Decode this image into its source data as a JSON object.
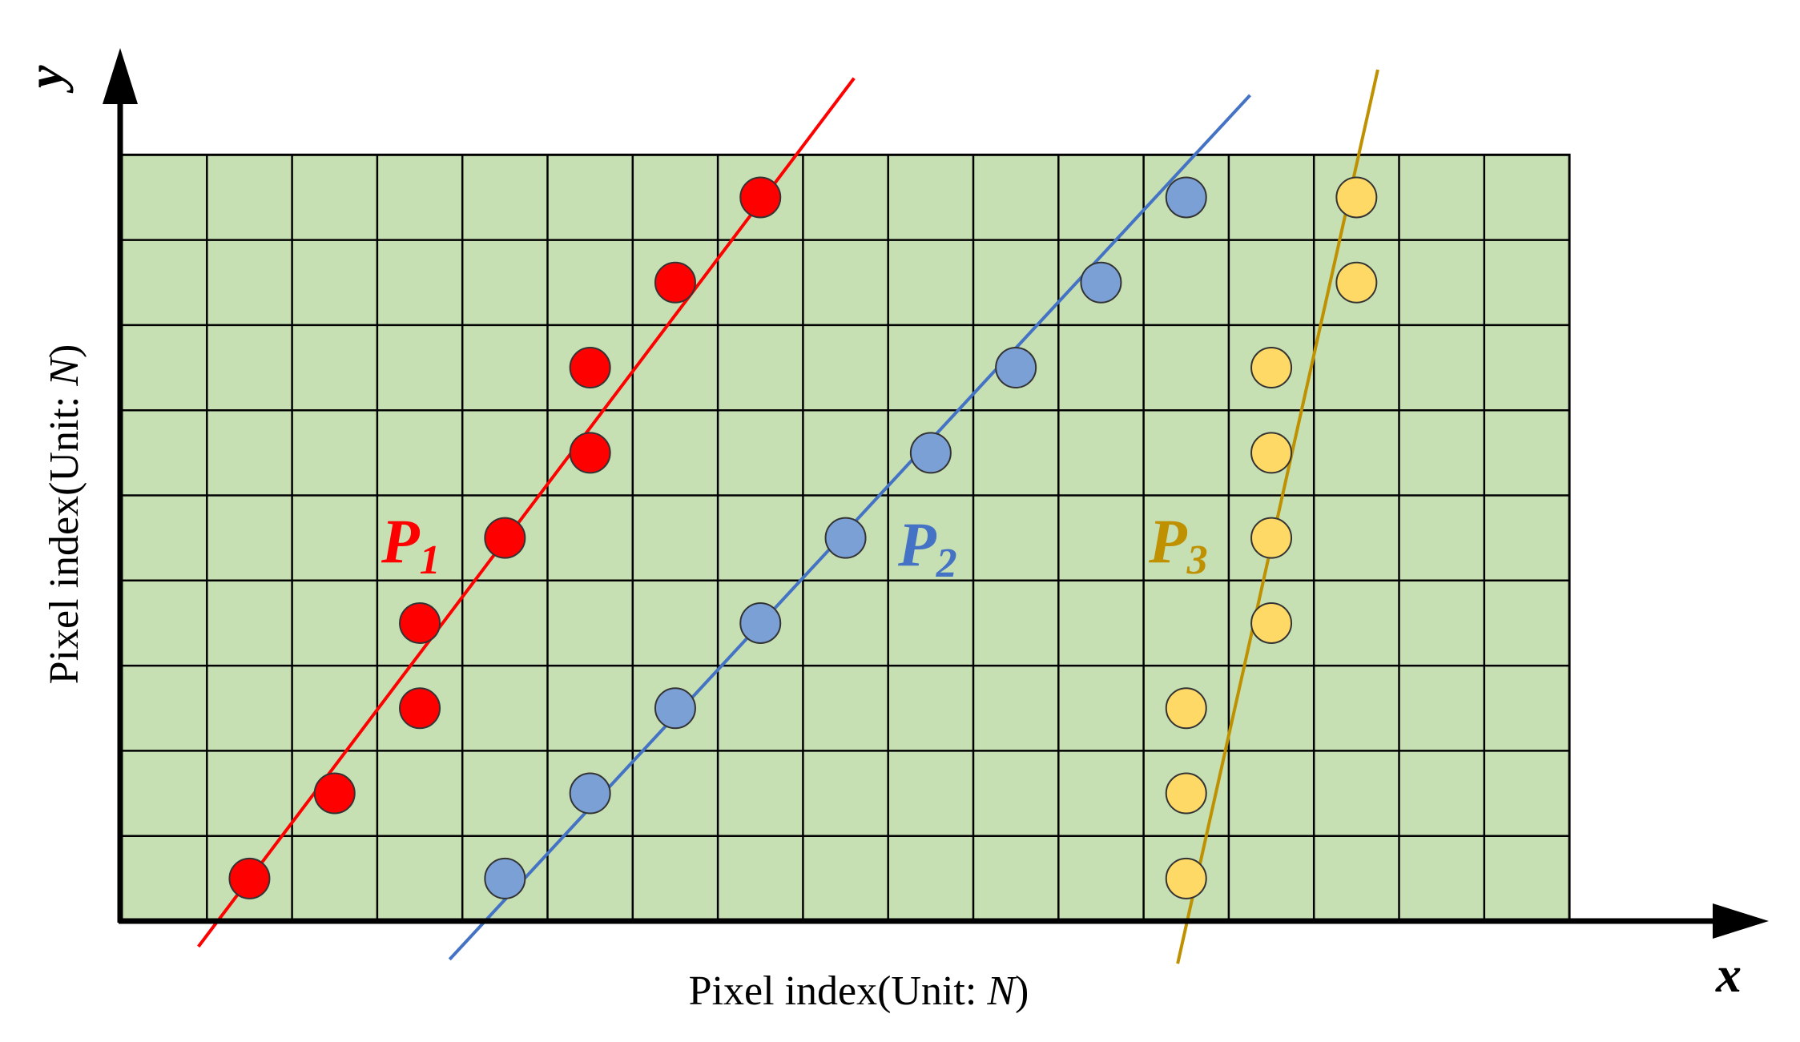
{
  "axes": {
    "x_letter": "x",
    "y_letter": "y",
    "x_label": {
      "prefix": "Pixel index(Unit: ",
      "unit": "N",
      "suffix": ")"
    },
    "y_label": {
      "prefix": "Pixel index(Unit: ",
      "unit": "N",
      "suffix": ")"
    }
  },
  "grid": {
    "columns": 17,
    "rows": 9,
    "fill": "#c6e0b4",
    "line_color": "#000000"
  },
  "series": [
    {
      "name": "P",
      "subscript": "1",
      "color": "#ff0000",
      "line_color": "#ff0000",
      "points": [
        [
          1.5,
          0.5
        ],
        [
          2.5,
          1.5
        ],
        [
          3.5,
          2.5
        ],
        [
          3.5,
          3.5
        ],
        [
          4.5,
          4.5
        ],
        [
          5.5,
          5.5
        ],
        [
          5.5,
          6.5
        ],
        [
          6.5,
          7.5
        ],
        [
          7.5,
          8.5
        ]
      ],
      "fit": [
        [
          0.9,
          -0.3
        ],
        [
          8.6,
          9.9
        ]
      ]
    },
    {
      "name": "P",
      "subscript": "2",
      "color": "#7aa0d6",
      "line_color": "#4472c4",
      "points": [
        [
          4.5,
          0.5
        ],
        [
          5.5,
          1.5
        ],
        [
          6.5,
          2.5
        ],
        [
          7.5,
          3.5
        ],
        [
          8.5,
          4.5
        ],
        [
          9.5,
          5.5
        ],
        [
          10.5,
          6.5
        ],
        [
          11.5,
          7.5
        ],
        [
          12.5,
          8.5
        ]
      ],
      "fit": [
        [
          3.85,
          -0.45
        ],
        [
          13.25,
          9.7
        ]
      ]
    },
    {
      "name": "P",
      "subscript": "3",
      "color": "#ffd966",
      "line_color": "#bf9000",
      "points": [
        [
          12.5,
          0.5
        ],
        [
          12.5,
          1.5
        ],
        [
          12.5,
          2.5
        ],
        [
          13.5,
          3.5
        ],
        [
          13.5,
          4.5
        ],
        [
          13.5,
          5.5
        ],
        [
          13.5,
          6.5
        ],
        [
          14.5,
          7.5
        ],
        [
          14.5,
          8.5
        ]
      ],
      "fit": [
        [
          12.4,
          -0.5
        ],
        [
          14.75,
          10.0
        ]
      ]
    }
  ]
}
